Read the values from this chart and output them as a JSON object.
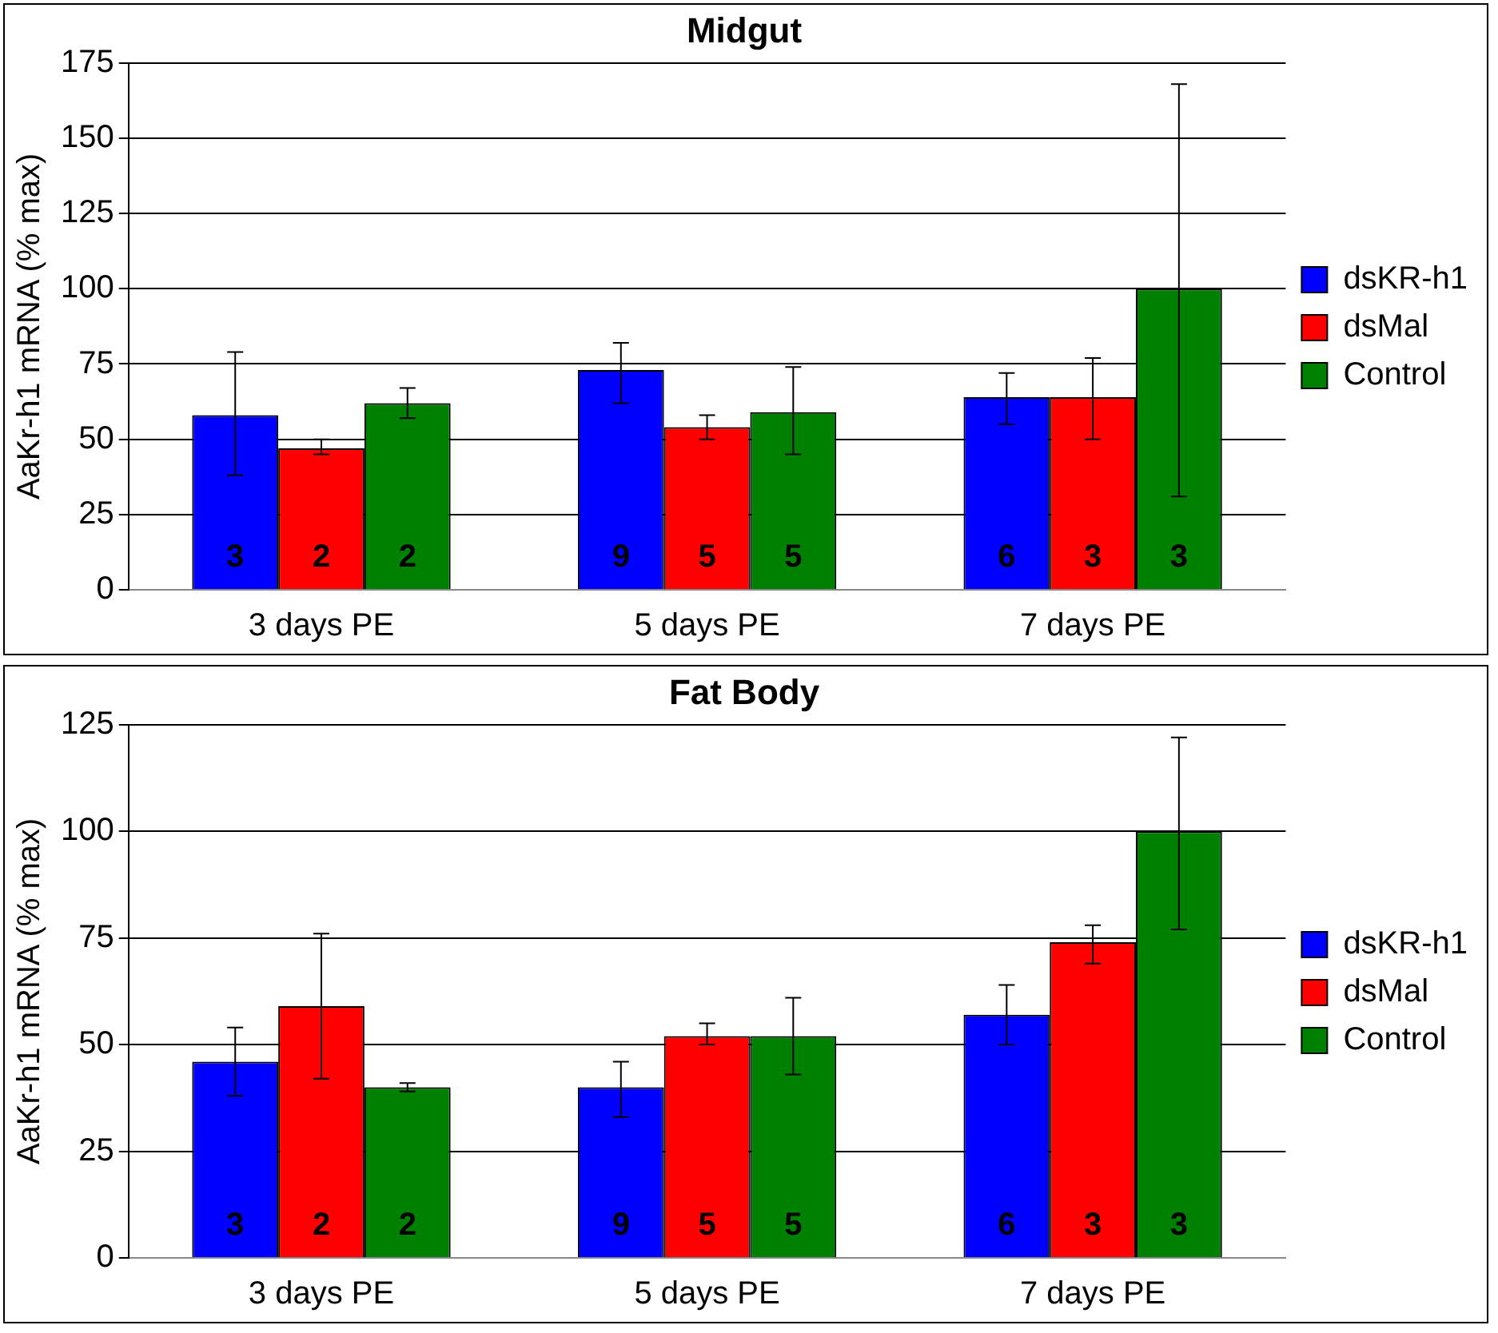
{
  "chart_data": [
    {
      "type": "bar",
      "title": "Midgut",
      "ylabel": "AaKr-h1 mRNA (% max)",
      "categories": [
        "3 days PE",
        "5 days PE",
        "7 days PE"
      ],
      "series": [
        {
          "name": "dsKR-h1",
          "color": "#0000ff",
          "values": [
            58,
            73,
            64
          ],
          "errors": [
            [
              38,
              79
            ],
            [
              62,
              82
            ],
            [
              55,
              72
            ]
          ]
        },
        {
          "name": "dsMal",
          "color": "#ff0000",
          "values": [
            47,
            54,
            64
          ],
          "errors": [
            [
              45,
              50
            ],
            [
              50,
              58
            ],
            [
              50,
              77
            ]
          ]
        },
        {
          "name": "Control",
          "color": "#008000",
          "values": [
            62,
            59,
            100
          ],
          "errors": [
            [
              57,
              67
            ],
            [
              45,
              74
            ],
            [
              31,
              168
            ]
          ]
        }
      ],
      "ylim": [
        0,
        175
      ],
      "yticks": [
        0,
        25,
        50,
        75,
        100,
        125,
        150,
        175
      ],
      "grid": "y",
      "legend": "right",
      "annotations": [
        "3",
        "2",
        "2",
        "9",
        "5",
        "5",
        "6",
        "3",
        "3"
      ]
    },
    {
      "type": "bar",
      "title": "Fat Body",
      "ylabel": "AaKr-h1 mRNA (% max)",
      "categories": [
        "3 days PE",
        "5 days PE",
        "7 days PE"
      ],
      "series": [
        {
          "name": "dsKR-h1",
          "color": "#0000ff",
          "values": [
            46,
            40,
            57
          ],
          "errors": [
            [
              38,
              54
            ],
            [
              33,
              46
            ],
            [
              50,
              64
            ]
          ]
        },
        {
          "name": "dsMal",
          "color": "#ff0000",
          "values": [
            59,
            52,
            74
          ],
          "errors": [
            [
              42,
              76
            ],
            [
              50,
              55
            ],
            [
              69,
              78
            ]
          ]
        },
        {
          "name": "Control",
          "color": "#008000",
          "values": [
            40,
            52,
            100
          ],
          "errors": [
            [
              39,
              41
            ],
            [
              43,
              61
            ],
            [
              77,
              122
            ]
          ]
        }
      ],
      "ylim": [
        0,
        125
      ],
      "yticks": [
        0,
        25,
        50,
        75,
        100,
        125
      ],
      "grid": "y",
      "legend": "right",
      "annotations": [
        "3",
        "2",
        "2",
        "9",
        "5",
        "5",
        "6",
        "3",
        "3"
      ]
    }
  ]
}
